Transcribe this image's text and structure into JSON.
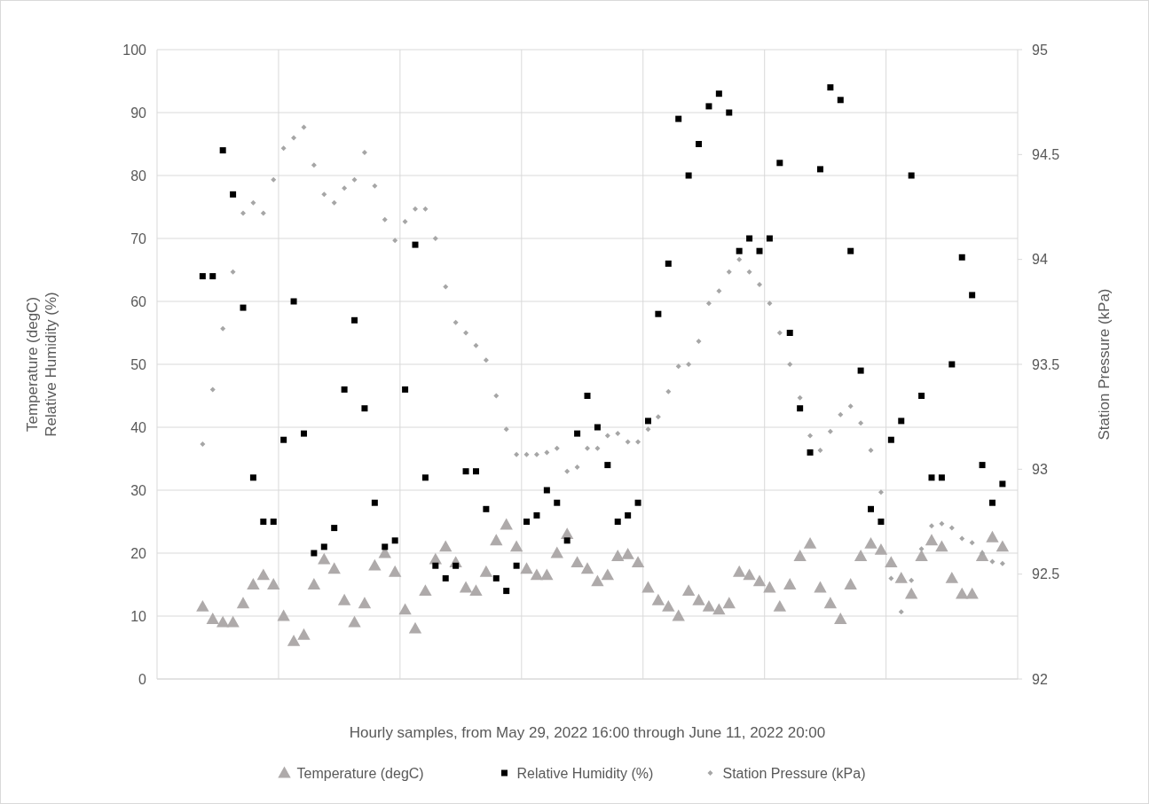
{
  "chart_data": {
    "type": "scatter",
    "xlabel": "Hourly samples, from May 29, 2022 16:00 through June 11, 2022 20:00",
    "ylabel": "Temperature (degC)\nRelative Humidity (%)",
    "y2label": "Station Pressure (kPa)",
    "categories": [
      null,
      null,
      null,
      null,
      null,
      null,
      null,
      null,
      null,
      null,
      null,
      null,
      null,
      null,
      null,
      null,
      null,
      null,
      null,
      null,
      null,
      null,
      null,
      null,
      null,
      null,
      null,
      null,
      null,
      null,
      null,
      null,
      null,
      null,
      null,
      null,
      null,
      null,
      null,
      null,
      null,
      null,
      null,
      null,
      null,
      null,
      null,
      null,
      null,
      null,
      null,
      null,
      null,
      null,
      null,
      null,
      null,
      null,
      null,
      null,
      null,
      null,
      null,
      null,
      null,
      null,
      null,
      null,
      null,
      null,
      null,
      null,
      null,
      null,
      null,
      null,
      null,
      null,
      null,
      null,
      null,
      null,
      null,
      null,
      null
    ],
    "ylim": [
      0,
      100
    ],
    "yticks": [
      0,
      10,
      20,
      30,
      40,
      50,
      60,
      70,
      80,
      90,
      100
    ],
    "y2lim": [
      92,
      95
    ],
    "y2ticks": [
      92,
      92.5,
      93,
      93.5,
      94,
      94.5,
      95
    ],
    "grid": true,
    "legend": "bottom",
    "series": [
      {
        "name": "Temperature (degC)",
        "color": "#aeaaaa",
        "marker": "triangle",
        "values": [
          null,
          null,
          null,
          null,
          11.5,
          9.5,
          9,
          9,
          12,
          15,
          16.5,
          15,
          10,
          6,
          7,
          15,
          19,
          17.5,
          12.5,
          9,
          12,
          18,
          20,
          17,
          11,
          8,
          14,
          19,
          21,
          18.5,
          14.5,
          14,
          17,
          22,
          24.5,
          21,
          17.5,
          16.5,
          16.5,
          20,
          23,
          18.5,
          17.5,
          15.5,
          16.5,
          19.5,
          19.8,
          18.5,
          14.5,
          12.5,
          11.5,
          10,
          14,
          12.5,
          11.5,
          11,
          12,
          17,
          16.5,
          15.5,
          14.5,
          11.5,
          15,
          19.5,
          21.5,
          14.5,
          12,
          9.5,
          15,
          19.5,
          21.5,
          20.5,
          18.5,
          16,
          13.5,
          19.5,
          22,
          21,
          16,
          13.5,
          13.5,
          19.5,
          22.5,
          21,
          null
        ]
      },
      {
        "name": "Relative Humidity (%)",
        "color": "#000000",
        "marker": "square",
        "values": [
          null,
          null,
          null,
          null,
          64,
          64,
          84,
          77,
          59,
          32,
          25,
          25,
          38,
          60,
          39,
          20,
          21,
          24,
          46,
          57,
          43,
          28,
          21,
          22,
          46,
          69,
          32,
          18,
          16,
          18,
          33,
          33,
          27,
          16,
          14,
          18,
          25,
          26,
          30,
          28,
          22,
          39,
          45,
          40,
          34,
          25,
          26,
          28,
          41,
          58,
          66,
          89,
          80,
          85,
          91,
          93,
          90,
          68,
          70,
          68,
          70,
          82,
          55,
          43,
          36,
          81,
          94,
          92,
          68,
          49,
          27,
          25,
          38,
          41,
          80,
          45,
          32,
          32,
          50,
          67,
          61,
          34,
          28,
          31,
          null
        ]
      },
      {
        "name": "Station Pressure (kPa)",
        "color": "#a6a6a6",
        "marker": "diamond",
        "axis": "y2",
        "values": [
          null,
          null,
          null,
          null,
          93.12,
          93.38,
          93.67,
          93.94,
          94.22,
          94.27,
          94.22,
          94.38,
          94.53,
          94.58,
          94.63,
          94.45,
          94.31,
          94.27,
          94.34,
          94.38,
          94.51,
          94.35,
          94.19,
          94.09,
          94.18,
          94.24,
          94.24,
          94.1,
          93.87,
          93.7,
          93.65,
          93.59,
          93.52,
          93.35,
          93.19,
          93.07,
          93.07,
          93.07,
          93.08,
          93.1,
          92.99,
          93.01,
          93.1,
          93.1,
          93.16,
          93.17,
          93.13,
          93.13,
          93.19,
          93.25,
          93.37,
          93.49,
          93.5,
          93.61,
          93.79,
          93.85,
          93.94,
          94.0,
          93.94,
          93.88,
          93.79,
          93.65,
          93.5,
          93.34,
          93.16,
          93.09,
          93.18,
          93.26,
          93.3,
          93.22,
          93.09,
          92.89,
          92.48,
          92.32,
          92.47,
          92.62,
          92.73,
          92.74,
          92.72,
          92.67,
          92.65,
          92.6,
          92.56,
          92.55,
          null
        ]
      }
    ]
  }
}
